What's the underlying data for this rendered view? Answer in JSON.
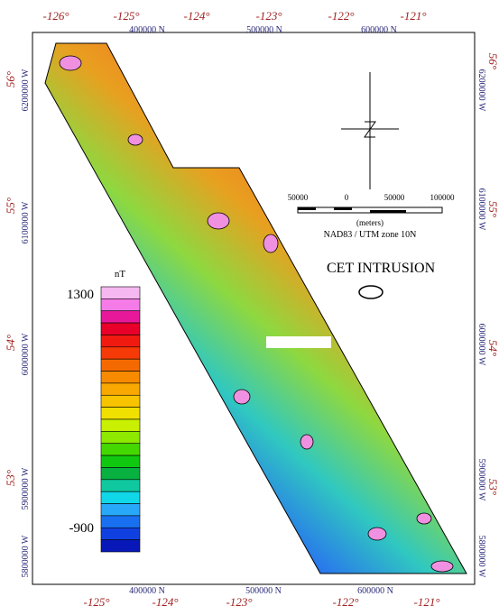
{
  "top_lon": [
    "-126°",
    "-125°",
    "-124°",
    "-123°",
    "-122°",
    "-121°"
  ],
  "top_utm": [
    "400000 N",
    "500000 N",
    "600000 N"
  ],
  "bottom_utm": [
    "400000 N",
    "500000 N",
    "600000 N"
  ],
  "bottom_lon": [
    "-125°",
    "-124°",
    "-123°",
    "-122°",
    "-121°"
  ],
  "left_lat": [
    "56°",
    "55°",
    "54°",
    "53°"
  ],
  "left_utm": [
    "6200000 W",
    "6100000 W",
    "6000000 W",
    "5900000 W",
    "5800000 W"
  ],
  "right_lat": [
    "56°",
    "55°",
    "54°",
    "53°"
  ],
  "right_utm": [
    "6200000 W",
    "6100000 W",
    "6000000 W",
    "5900000 W",
    "5800000 W"
  ],
  "scale_bar": {
    "labels": [
      "50000",
      "0",
      "50000",
      "100000"
    ],
    "unit": "(meters)",
    "projection": "NAD83 / UTM zone 10N"
  },
  "title": "CET INTRUSION",
  "legend": {
    "unit": "nT",
    "max_label": "1300",
    "min_label": "-900",
    "colors": [
      "#f6b8f0",
      "#f57ce8",
      "#e8189a",
      "#e8002a",
      "#f01a10",
      "#f53a08",
      "#f56a00",
      "#f88a00",
      "#f8a800",
      "#f8c400",
      "#f0e000",
      "#c8f000",
      "#8ee800",
      "#44d800",
      "#10c810",
      "#08b040",
      "#10c8a0",
      "#10d8e8",
      "#28a8f8",
      "#1870f0",
      "#1040e0",
      "#0818b8"
    ]
  }
}
